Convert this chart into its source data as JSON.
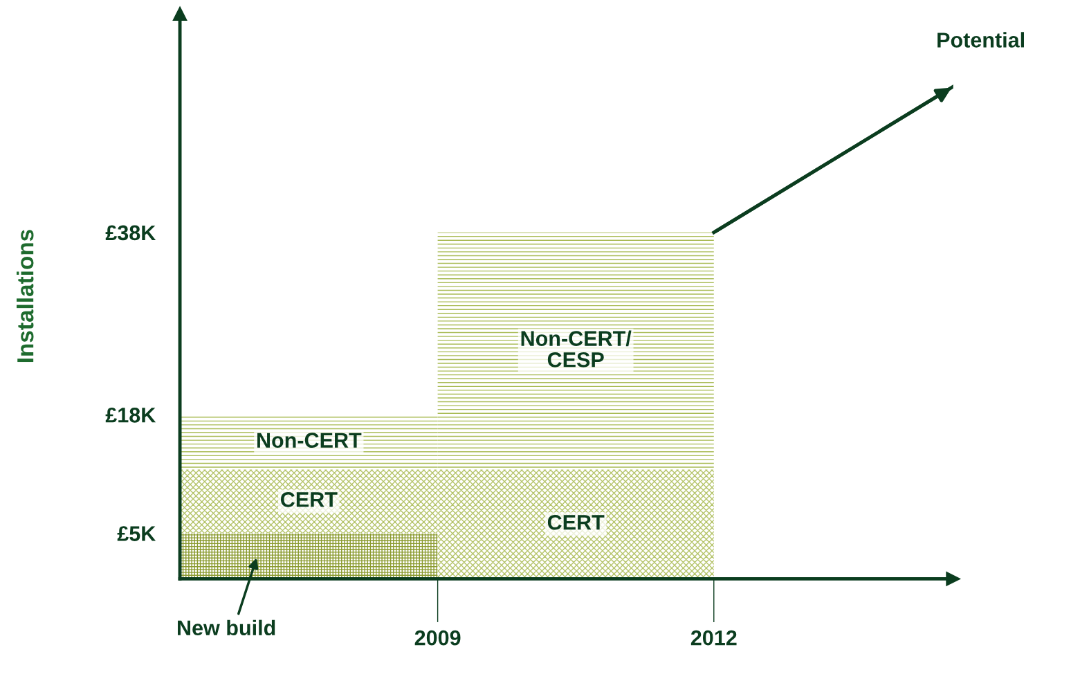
{
  "chart_data": {
    "type": "bar",
    "stacked": true,
    "ylabel": "Installations",
    "x": [
      2007.6,
      2010.5
    ],
    "xlim": [
      2006.2,
      2014.6
    ],
    "xticks": [
      2009,
      2012
    ],
    "ylim": [
      0,
      62
    ],
    "yticks": [
      {
        "value": 5,
        "label": "£5K"
      },
      {
        "value": 18,
        "label": "£18K"
      },
      {
        "value": 38,
        "label": "£38K"
      }
    ],
    "grid": false,
    "legend": false,
    "series": [
      {
        "name": "New build",
        "color": "#8a9a2e",
        "values": [
          5,
          null
        ]
      },
      {
        "name": "CERT",
        "color": "#b5c46a",
        "values": [
          7,
          12
        ]
      },
      {
        "name": "Non-CERT",
        "color": "#a9bb55",
        "values": [
          6,
          null
        ]
      },
      {
        "name": "Non-CERT/\nCESP",
        "color": "#a9bb55",
        "values": [
          null,
          26
        ]
      },
      {
        "name": "Potential",
        "type": "line",
        "color": "#0b3d1f",
        "x": [
          2012,
          2014.6
        ],
        "values": [
          38,
          54
        ]
      }
    ]
  }
}
